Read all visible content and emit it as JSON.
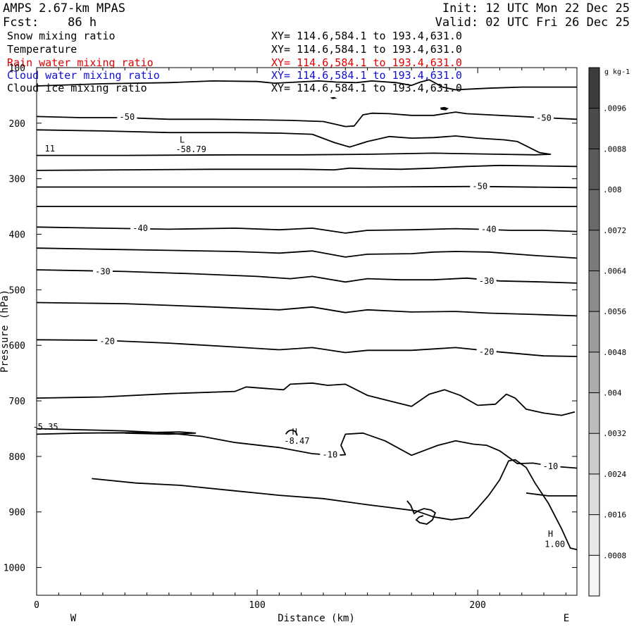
{
  "header": {
    "model": "AMPS 2.67-km MPAS",
    "init": "Init: 12 UTC Mon 22 Dec 25",
    "fcst": "Fcst:    86 h",
    "valid": "Valid: 02 UTC Fri 26 Dec 25"
  },
  "fields": [
    {
      "name": "Snow mixing ratio",
      "xy": "XY= 114.6,584.1 to 193.4,631.0",
      "color": "#000000"
    },
    {
      "name": "Temperature",
      "xy": "XY= 114.6,584.1 to 193.4,631.0",
      "color": "#000000"
    },
    {
      "name": "Rain water mixing ratio",
      "xy": "XY= 114.6,584.1 to 193.4,631.0",
      "color": "#e00000"
    },
    {
      "name": "Cloud water mixing ratio",
      "xy": "XY= 114.6,584.1 to 193.4,631.0",
      "color": "#1010d0"
    },
    {
      "name": "Cloud ice mixing ratio",
      "xy": "XY= 114.6,584.1 to 193.4,631.0",
      "color": "#000000"
    }
  ],
  "chart_data": {
    "type": "contour",
    "xlabel": "Distance (km)",
    "ylabel": "Pressure (hPa)",
    "xlim": [
      0,
      245
    ],
    "ylim": [
      1050,
      100
    ],
    "xticks": [
      0,
      100,
      200
    ],
    "yticks": [
      100,
      200,
      300,
      400,
      500,
      600,
      700,
      800,
      900,
      1000
    ],
    "left_label": "W",
    "right_label": "E",
    "colorbar": {
      "unit": "g kg-1",
      "ticks": [
        ".0096",
        ".0088",
        ".008",
        ".0072",
        ".0064",
        ".0056",
        ".0048",
        ".004",
        ".0032",
        ".0024",
        ".0016",
        ".0008"
      ],
      "colors": [
        "#3c3c3c",
        "#4b4b4b",
        "#5a5a5a",
        "#6a6a6a",
        "#7b7b7b",
        "#8b8b8b",
        "#9c9c9c",
        "#acacac",
        "#bcbcbc",
        "#cbcbcb",
        "#dbdbdb",
        "#e8e8e8",
        "#f5f5f5"
      ]
    },
    "contours": [
      {
        "label": "",
        "points": [
          [
            0,
            133
          ],
          [
            30,
            129
          ],
          [
            60,
            127
          ],
          [
            80,
            124
          ],
          [
            100,
            125
          ],
          [
            108,
            128
          ],
          [
            118,
            126
          ],
          [
            128,
            124
          ],
          [
            136,
            126
          ],
          [
            145,
            127
          ],
          [
            152,
            124
          ],
          [
            163,
            127
          ],
          [
            170,
            132
          ],
          [
            174,
            126
          ],
          [
            178,
            122
          ],
          [
            180,
            126
          ],
          [
            184,
            135
          ],
          [
            190,
            140
          ],
          [
            195,
            139
          ],
          [
            205,
            137
          ],
          [
            220,
            135
          ],
          [
            245,
            135
          ]
        ]
      },
      {
        "label": "-50",
        "points": [
          [
            0,
            188
          ],
          [
            20,
            190
          ],
          [
            40,
            190
          ],
          [
            60,
            193
          ],
          [
            80,
            193
          ],
          [
            100,
            194
          ],
          [
            115,
            195
          ],
          [
            130,
            197
          ],
          [
            140,
            206
          ],
          [
            144,
            205
          ],
          [
            148,
            185
          ],
          [
            152,
            182
          ],
          [
            160,
            183
          ],
          [
            170,
            186
          ],
          [
            180,
            186
          ],
          [
            190,
            180
          ],
          [
            195,
            183
          ],
          [
            205,
            185
          ],
          [
            230,
            190
          ],
          [
            245,
            193
          ]
        ]
      },
      {
        "label": "",
        "points": [
          [
            0,
            212
          ],
          [
            30,
            214
          ],
          [
            60,
            217
          ],
          [
            90,
            217
          ],
          [
            110,
            218
          ],
          [
            125,
            220
          ],
          [
            135,
            235
          ],
          [
            142,
            243
          ],
          [
            150,
            233
          ],
          [
            160,
            224
          ],
          [
            170,
            227
          ],
          [
            180,
            226
          ],
          [
            190,
            223
          ],
          [
            200,
            227
          ],
          [
            212,
            230
          ],
          [
            218,
            233
          ],
          [
            225,
            247
          ],
          [
            228,
            253
          ],
          [
            233,
            256
          ],
          [
            226,
            257
          ],
          [
            210,
            256
          ],
          [
            180,
            254
          ],
          [
            150,
            256
          ],
          [
            120,
            257
          ],
          [
            90,
            257
          ],
          [
            40,
            258
          ],
          [
            0,
            258
          ]
        ]
      },
      {
        "label": "",
        "points": [
          [
            0,
            285
          ],
          [
            40,
            284
          ],
          [
            80,
            283
          ],
          [
            120,
            283
          ],
          [
            135,
            284
          ],
          [
            142,
            281
          ],
          [
            150,
            282
          ],
          [
            165,
            283
          ],
          [
            180,
            281
          ],
          [
            195,
            278
          ],
          [
            210,
            276
          ],
          [
            230,
            277
          ],
          [
            245,
            278
          ]
        ]
      },
      {
        "label": "-50",
        "points": [
          [
            0,
            315
          ],
          [
            50,
            315
          ],
          [
            100,
            315
          ],
          [
            150,
            315
          ],
          [
            200,
            314
          ],
          [
            245,
            316
          ]
        ]
      },
      {
        "label": "",
        "points": [
          [
            0,
            350
          ],
          [
            100,
            350
          ],
          [
            200,
            350
          ],
          [
            245,
            350
          ]
        ]
      },
      {
        "label": "-40",
        "points": [
          [
            0,
            387
          ],
          [
            30,
            389
          ],
          [
            60,
            391
          ],
          [
            90,
            389
          ],
          [
            110,
            392
          ],
          [
            125,
            389
          ],
          [
            140,
            398
          ],
          [
            150,
            393
          ],
          [
            170,
            392
          ],
          [
            190,
            390
          ],
          [
            200,
            391
          ],
          [
            215,
            393
          ],
          [
            230,
            393
          ],
          [
            245,
            395
          ]
        ]
      },
      {
        "label": "",
        "points": [
          [
            0,
            425
          ],
          [
            30,
            427
          ],
          [
            60,
            429
          ],
          [
            90,
            431
          ],
          [
            110,
            434
          ],
          [
            125,
            430
          ],
          [
            140,
            441
          ],
          [
            150,
            436
          ],
          [
            170,
            435
          ],
          [
            180,
            432
          ],
          [
            190,
            431
          ],
          [
            205,
            432
          ],
          [
            225,
            438
          ],
          [
            245,
            443
          ]
        ]
      },
      {
        "label": "-30",
        "points": [
          [
            0,
            464
          ],
          [
            40,
            467
          ],
          [
            70,
            471
          ],
          [
            100,
            476
          ],
          [
            115,
            480
          ],
          [
            125,
            476
          ],
          [
            140,
            486
          ],
          [
            150,
            480
          ],
          [
            165,
            482
          ],
          [
            180,
            482
          ],
          [
            195,
            479
          ],
          [
            210,
            484
          ],
          [
            230,
            486
          ],
          [
            245,
            488
          ]
        ]
      },
      {
        "label": "",
        "points": [
          [
            0,
            523
          ],
          [
            40,
            525
          ],
          [
            80,
            531
          ],
          [
            110,
            536
          ],
          [
            125,
            531
          ],
          [
            140,
            541
          ],
          [
            150,
            536
          ],
          [
            170,
            540
          ],
          [
            190,
            539
          ],
          [
            205,
            542
          ],
          [
            230,
            545
          ],
          [
            245,
            547
          ]
        ]
      },
      {
        "label": "-20",
        "points": [
          [
            0,
            590
          ],
          [
            30,
            591
          ],
          [
            60,
            596
          ],
          [
            90,
            603
          ],
          [
            110,
            608
          ],
          [
            125,
            604
          ],
          [
            140,
            613
          ],
          [
            150,
            609
          ],
          [
            170,
            609
          ],
          [
            190,
            604
          ],
          [
            210,
            612
          ],
          [
            230,
            619
          ],
          [
            245,
            620
          ]
        ]
      },
      {
        "label": "",
        "points": [
          [
            0,
            695
          ],
          [
            30,
            693
          ],
          [
            60,
            687
          ],
          [
            90,
            683
          ],
          [
            95,
            675
          ],
          [
            105,
            678
          ],
          [
            112,
            680
          ],
          [
            115,
            670
          ],
          [
            125,
            668
          ],
          [
            132,
            672
          ],
          [
            140,
            670
          ],
          [
            150,
            690
          ],
          [
            160,
            700
          ],
          [
            170,
            710
          ],
          [
            178,
            688
          ],
          [
            185,
            680
          ],
          [
            192,
            690
          ],
          [
            200,
            708
          ],
          [
            208,
            706
          ],
          [
            213,
            688
          ],
          [
            217,
            695
          ],
          [
            222,
            715
          ],
          [
            230,
            722
          ],
          [
            238,
            726
          ],
          [
            244,
            720
          ]
        ]
      },
      {
        "label": "-10",
        "points": [
          [
            0,
            750
          ],
          [
            20,
            752
          ],
          [
            40,
            754
          ],
          [
            60,
            758
          ],
          [
            75,
            764
          ],
          [
            90,
            775
          ],
          [
            110,
            784
          ],
          [
            125,
            795
          ],
          [
            135,
            798
          ],
          [
            140,
            797
          ],
          [
            138,
            780
          ],
          [
            140,
            760
          ],
          [
            148,
            758
          ],
          [
            158,
            772
          ],
          [
            170,
            798
          ],
          [
            182,
            780
          ],
          [
            190,
            772
          ],
          [
            198,
            778
          ],
          [
            204,
            780
          ],
          [
            210,
            790
          ],
          [
            218,
            813
          ],
          [
            225,
            812
          ],
          [
            235,
            818
          ],
          [
            245,
            821
          ]
        ]
      },
      {
        "label": "",
        "points": [
          [
            25,
            840
          ],
          [
            45,
            848
          ],
          [
            65,
            852
          ],
          [
            90,
            862
          ],
          [
            110,
            870
          ],
          [
            130,
            876
          ],
          [
            150,
            887
          ],
          [
            160,
            892
          ],
          [
            172,
            898
          ],
          [
            180,
            909
          ],
          [
            188,
            914
          ],
          [
            196,
            910
          ],
          [
            200,
            893
          ],
          [
            205,
            870
          ],
          [
            210,
            842
          ],
          [
            214,
            808
          ],
          [
            217,
            806
          ],
          [
            222,
            820
          ],
          [
            226,
            848
          ],
          [
            232,
            884
          ],
          [
            238,
            930
          ],
          [
            242,
            965
          ],
          [
            245,
            968
          ]
        ]
      },
      {
        "label": "",
        "points": [
          [
            222,
            866
          ],
          [
            232,
            871
          ],
          [
            245,
            871
          ]
        ]
      },
      {
        "label": "",
        "points": [
          [
            0,
            760
          ],
          [
            20,
            758
          ],
          [
            50,
            757
          ],
          [
            65,
            756
          ],
          [
            72,
            758
          ],
          [
            60,
            760
          ],
          [
            40,
            758
          ]
        ]
      }
    ],
    "annotations": [
      {
        "text": "L",
        "x": 66,
        "y": 235
      },
      {
        "text": "-58.79",
        "x": 70,
        "y": 252
      },
      {
        "text": "11",
        "x": 6,
        "y": 251
      },
      {
        "text": "H",
        "x": 117,
        "y": 761
      },
      {
        "text": "-8.47",
        "x": 118,
        "y": 777
      },
      {
        "text": "-5.35",
        "x": 4,
        "y": 752
      },
      {
        "text": "H",
        "x": 233,
        "y": 945
      },
      {
        "text": "1.00",
        "x": 235,
        "y": 963
      }
    ],
    "contour_labels": [
      {
        "text": "-50",
        "x": 41,
        "y": 189
      },
      {
        "text": "-50",
        "x": 230,
        "y": 191
      },
      {
        "text": "-50",
        "x": 201,
        "y": 314
      },
      {
        "text": "-40",
        "x": 47,
        "y": 389
      },
      {
        "text": "-40",
        "x": 205,
        "y": 391
      },
      {
        "text": "-30",
        "x": 30,
        "y": 467
      },
      {
        "text": "-30",
        "x": 204,
        "y": 484
      },
      {
        "text": "-20",
        "x": 32,
        "y": 593
      },
      {
        "text": "-20",
        "x": 204,
        "y": 612
      },
      {
        "text": "-10",
        "x": 133,
        "y": 797
      },
      {
        "text": "-10",
        "x": 233,
        "y": 818
      }
    ]
  }
}
